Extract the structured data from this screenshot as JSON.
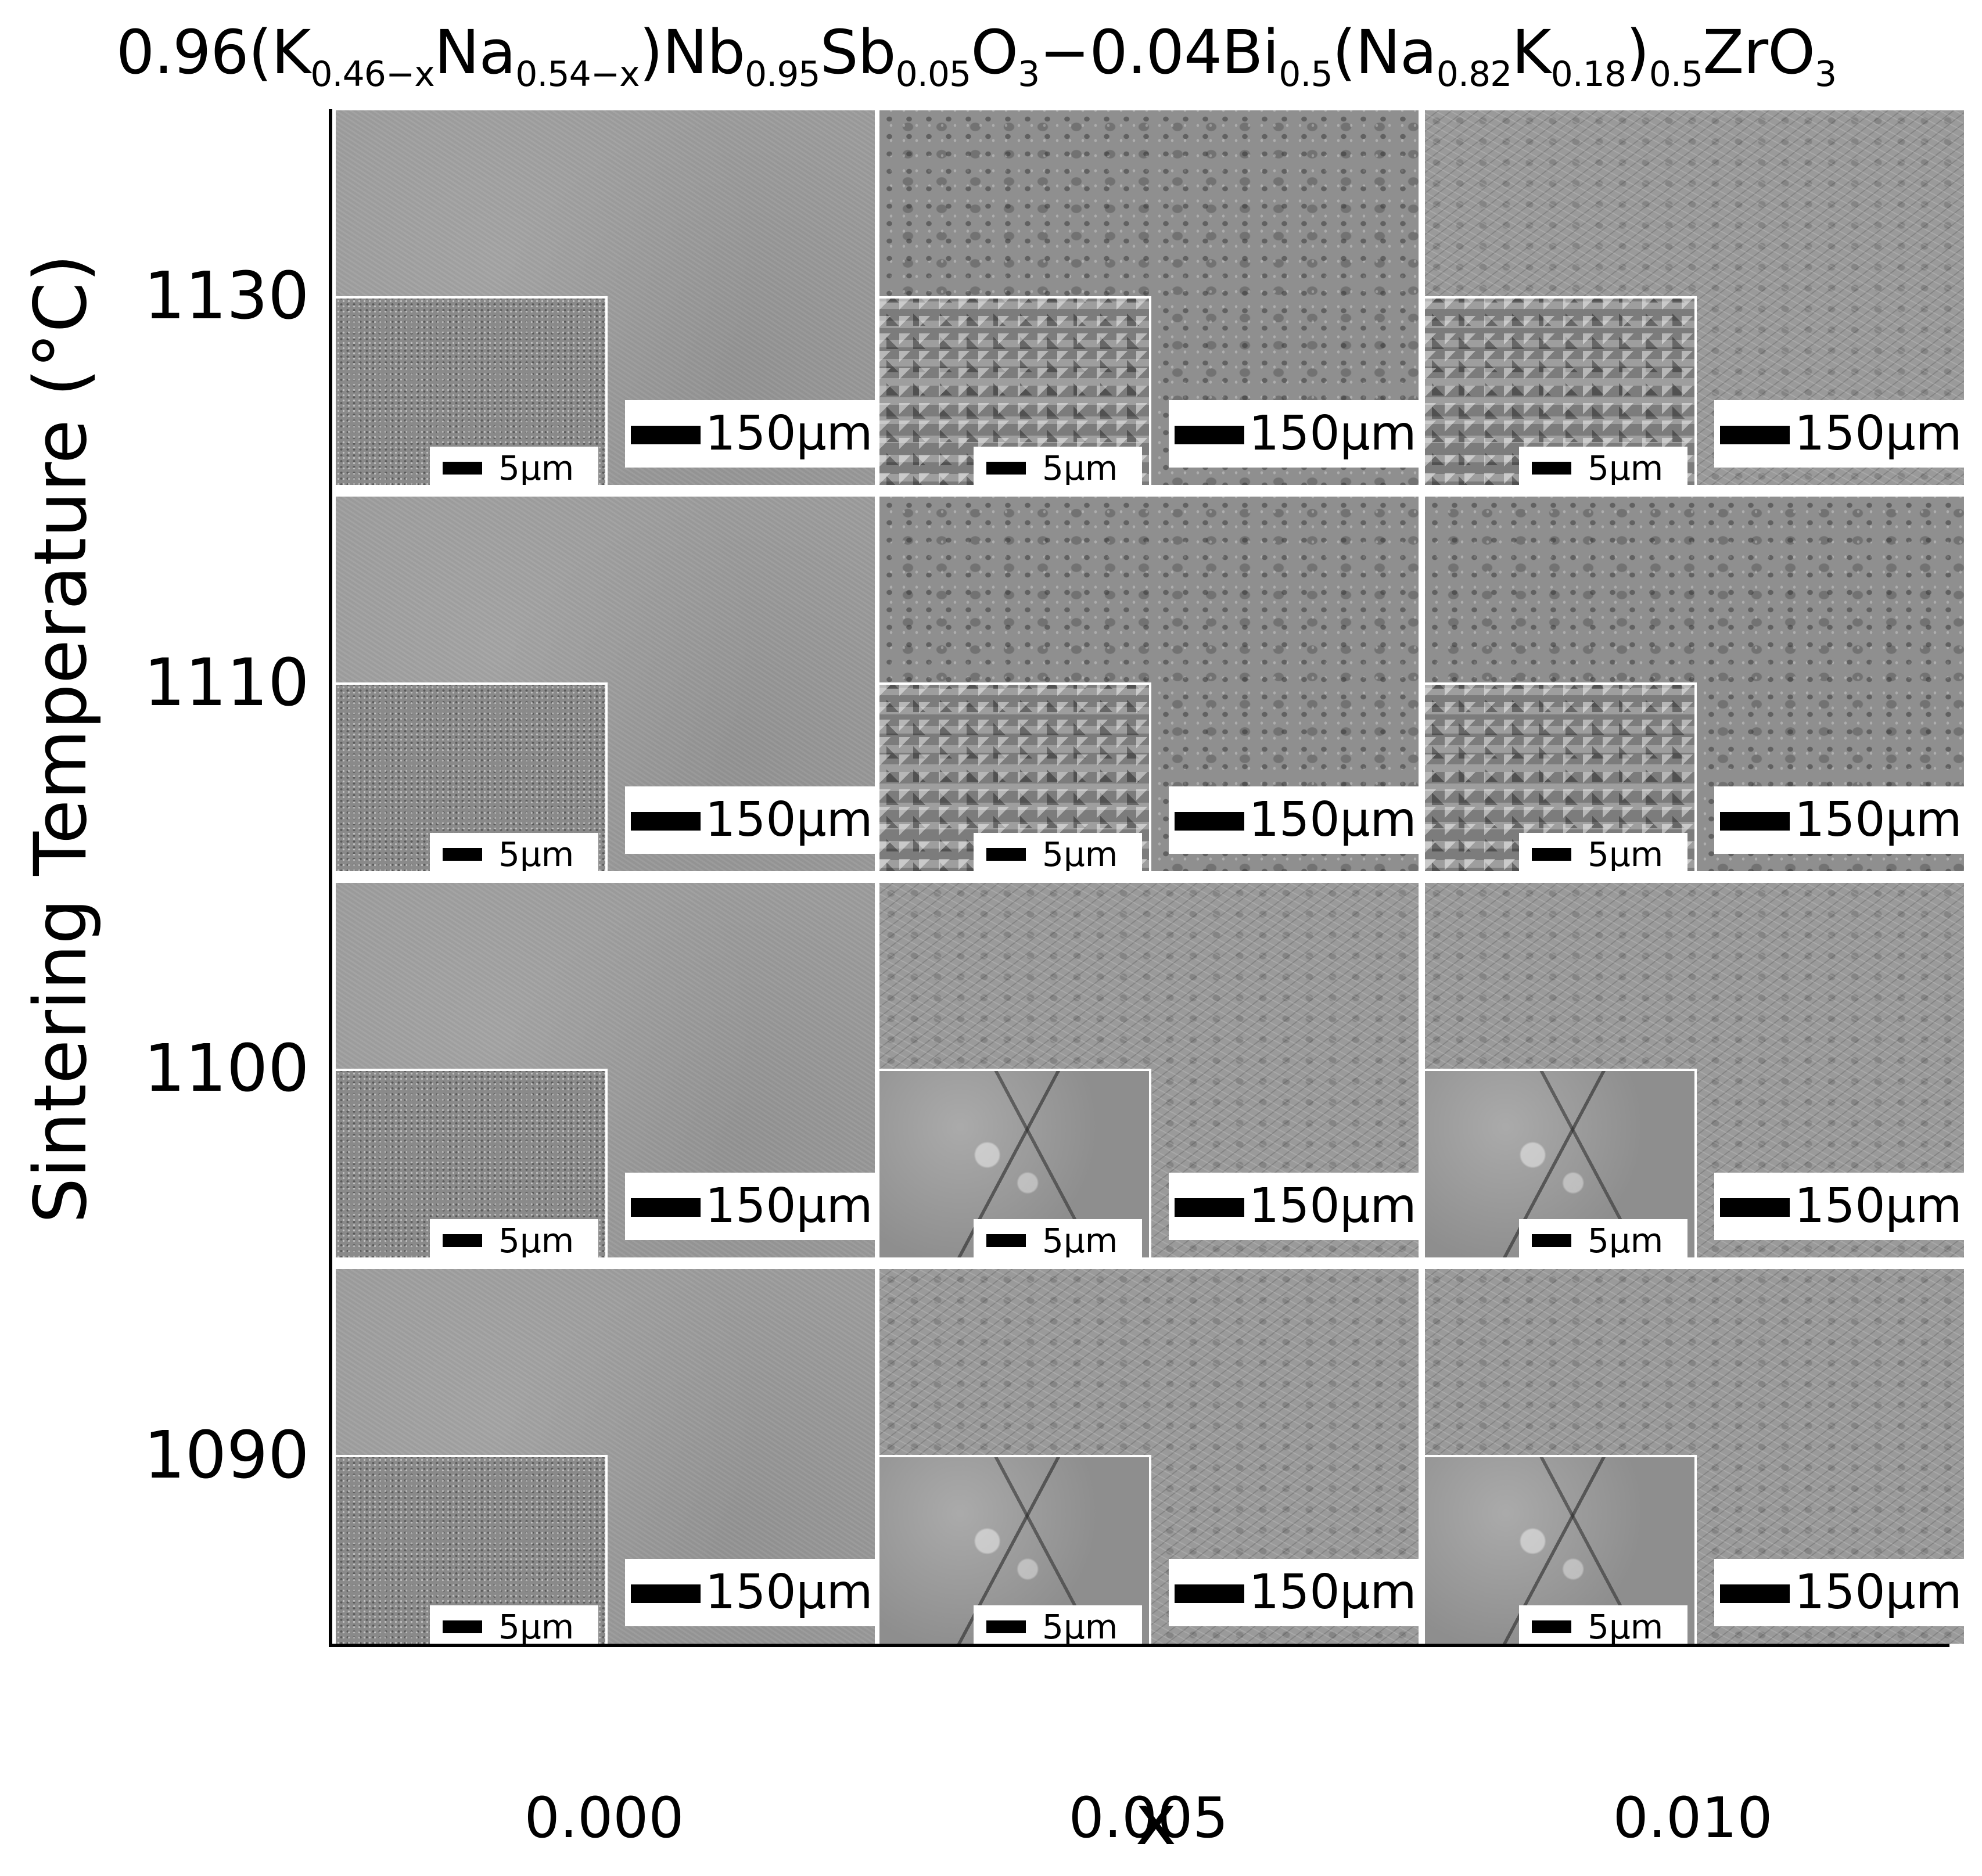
{
  "figure": {
    "title_parts": [
      {
        "t": "0.96(K",
        "sub": false
      },
      {
        "t": "0.46−x",
        "sub": true
      },
      {
        "t": "Na",
        "sub": false
      },
      {
        "t": "0.54−x",
        "sub": true
      },
      {
        "t": ")Nb",
        "sub": false
      },
      {
        "t": "0.95",
        "sub": true
      },
      {
        "t": "Sb",
        "sub": false
      },
      {
        "t": "0.05",
        "sub": true
      },
      {
        "t": "O",
        "sub": false
      },
      {
        "t": "3",
        "sub": true
      },
      {
        "t": "−0.04Bi",
        "sub": false
      },
      {
        "t": "0.5",
        "sub": true
      },
      {
        "t": "(Na",
        "sub": false
      },
      {
        "t": "0.82",
        "sub": true
      },
      {
        "t": "K",
        "sub": false
      },
      {
        "t": "0.18",
        "sub": true
      },
      {
        "t": ")",
        "sub": false
      },
      {
        "t": "0.5",
        "sub": true
      },
      {
        "t": "ZrO",
        "sub": false
      },
      {
        "t": "3",
        "sub": true
      }
    ],
    "y_axis_label": "Sintering Temperature (°C)",
    "x_axis_label": "x",
    "rows": [
      "1130",
      "1110",
      "1100",
      "1090"
    ],
    "columns": [
      "0.000",
      "0.005",
      "0.010"
    ],
    "main_scale_label": "150μm",
    "inset_scale_label": "5μm",
    "textures": [
      [
        "smooth",
        "pitted",
        "grainy"
      ],
      [
        "smooth",
        "pitted",
        "pitted"
      ],
      [
        "smooth",
        "grainy",
        "grainy"
      ],
      [
        "smooth",
        "grainy",
        "grainy"
      ]
    ],
    "inset_textures": [
      [
        "fine",
        "cubes",
        "cubes"
      ],
      [
        "fine",
        "cubes",
        "cubes"
      ],
      [
        "fine",
        "large",
        "large"
      ],
      [
        "fine",
        "large",
        "large"
      ]
    ]
  }
}
